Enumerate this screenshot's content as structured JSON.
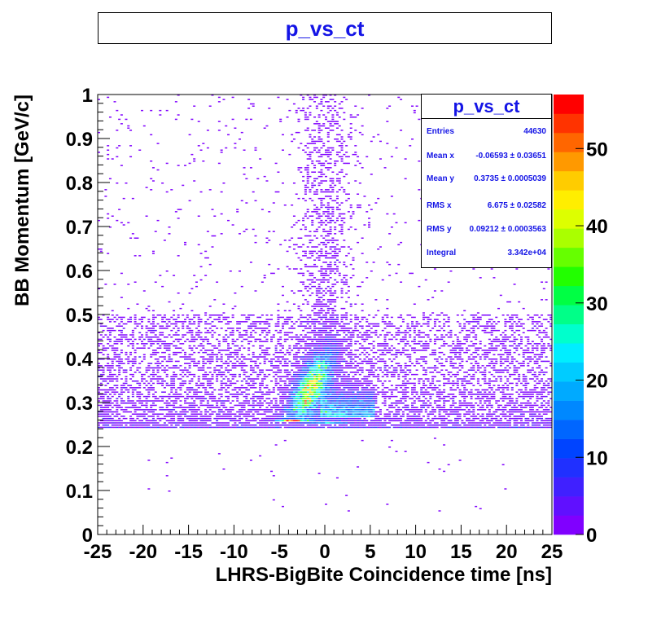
{
  "title": "p_vs_ct",
  "stats": {
    "title": "p_vs_ct",
    "rows": [
      {
        "key": "Entries",
        "value": "44630"
      },
      {
        "key": "Mean x",
        "value": "-0.06593 ± 0.03651"
      },
      {
        "key": "Mean y",
        "value": "0.3735 ± 0.0005039"
      },
      {
        "key": "RMS x",
        "value": "6.675 ± 0.02582"
      },
      {
        "key": "RMS y",
        "value": "0.09212 ± 0.0003563"
      },
      {
        "key": "Integral",
        "value": "3.342e+04"
      }
    ]
  },
  "colors": {
    "frame": "#000000",
    "title_text": "#1414e6",
    "palette": [
      "#8000ff",
      "#6010ff",
      "#4020ff",
      "#2030ff",
      "#0044ff",
      "#0066ff",
      "#0088ff",
      "#00aaff",
      "#00ccff",
      "#00eeff",
      "#00ffcc",
      "#00ff88",
      "#00ff44",
      "#22ff00",
      "#66ff00",
      "#aaff00",
      "#ddff00",
      "#ffee00",
      "#ffcc00",
      "#ff9900",
      "#ff6600",
      "#ff3300",
      "#ff0000"
    ]
  },
  "chart_data": {
    "type": "heatmap",
    "title": "p_vs_ct",
    "xlabel": "LHRS-BigBite Coincidence time [ns]",
    "ylabel": "BB Momentum [GeV/c]",
    "xlim": [
      -25,
      25
    ],
    "ylim": [
      0,
      1
    ],
    "x_ticks": [
      "-25",
      "-20",
      "-15",
      "-10",
      "-5",
      "0",
      "5",
      "10",
      "15",
      "20",
      "25"
    ],
    "y_ticks": [
      "0",
      "0.1",
      "0.2",
      "0.3",
      "0.4",
      "0.5",
      "0.6",
      "0.7",
      "0.8",
      "0.9",
      "1"
    ],
    "z_range": [
      0,
      57
    ],
    "z_ticks": [
      "0",
      "10",
      "20",
      "30",
      "40",
      "50"
    ],
    "features": {
      "background_band_y": [
        0.24,
        0.5
      ],
      "peak": {
        "x": 0,
        "y": 0.33,
        "z_max": 57
      },
      "coincidence_band_x": [
        -4,
        4
      ]
    }
  }
}
